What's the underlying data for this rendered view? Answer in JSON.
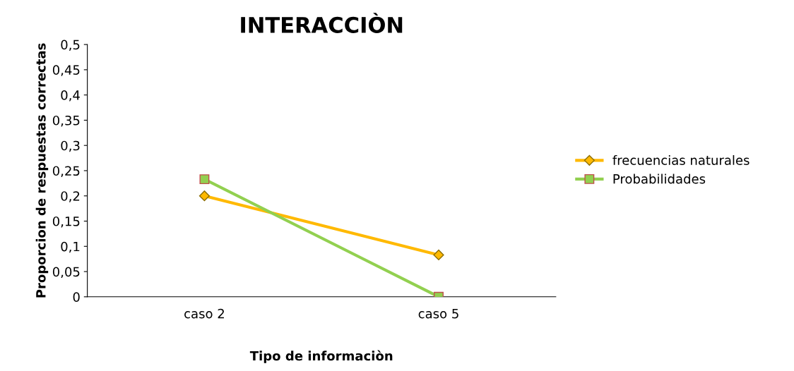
{
  "chart_data": {
    "type": "line",
    "title": "INTERACCIÒN",
    "xlabel": "Tipo de informaciòn",
    "ylabel": "Proporcion de respuestas correctas",
    "categories": [
      "caso 2",
      "caso 5"
    ],
    "series": [
      {
        "name": "frecuencias naturales",
        "color": "#ffb900",
        "marker": "diamond",
        "values": [
          0.2,
          0.083
        ]
      },
      {
        "name": "Probabilidades",
        "color": "#92d050",
        "marker": "square",
        "values": [
          0.233,
          0
        ]
      }
    ],
    "ylim": [
      0,
      0.5
    ],
    "yticks": [
      0,
      {
        "value": 0.05,
        "label": "0,05"
      },
      {
        "value": 0.1,
        "label": "0,1"
      },
      {
        "value": 0.15,
        "label": "0,15"
      },
      {
        "value": 0.2,
        "label": "0,2"
      },
      {
        "value": 0.25,
        "label": "0,25"
      },
      {
        "value": 0.3,
        "label": "0,3"
      },
      {
        "value": 0.35,
        "label": "0,35"
      },
      {
        "value": 0.4,
        "label": "0,4"
      },
      {
        "value": 0.45,
        "label": "0,45"
      },
      {
        "value": 0.5,
        "label": "0,5"
      }
    ],
    "grid": false,
    "legend": "right",
    "line_style": "solid"
  }
}
